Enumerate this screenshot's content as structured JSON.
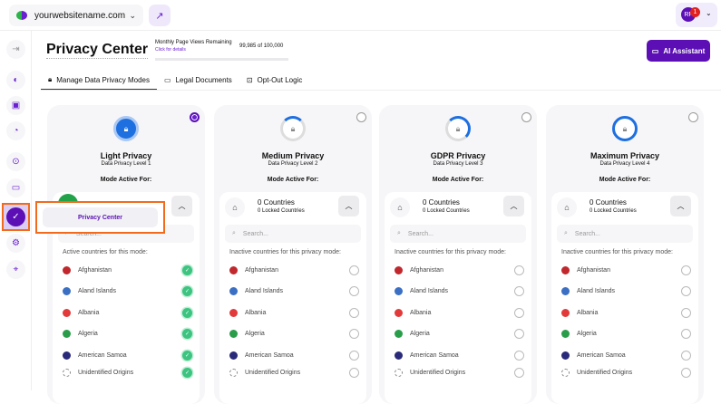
{
  "topbar": {
    "site": "yourwebsitename.com",
    "user_initials": "RF",
    "notifications": "1"
  },
  "sidebar": {
    "items": [
      "collapse",
      "dashboard",
      "consent",
      "analytics",
      "scan",
      "chat",
      "privacy-center",
      "settings",
      "users"
    ],
    "active": "privacy-center",
    "tooltip": "Privacy Center"
  },
  "header": {
    "title": "Privacy Center",
    "pageviews_label": "Monthly Page Views Remaining",
    "pageviews_link": "Click for details",
    "pageviews_count": "99,985 of 100,000",
    "pageviews_used_fraction": 0.00015,
    "ai_button": "AI Assistant"
  },
  "tabs": [
    {
      "label": "Manage Data Privacy Modes",
      "active": true
    },
    {
      "label": "Legal Documents"
    },
    {
      "label": "Opt-Out Logic"
    }
  ],
  "colors": {
    "accent": "#5b0fb5",
    "highlight": "#f26b1d",
    "check": "#3cc480",
    "ring": "#1e6fe0"
  },
  "mode_active_for": "Mode Active For:",
  "search_placeholder": "Search...",
  "cards": [
    {
      "name": "Light Privacy",
      "level": "Data Privacy Level 1",
      "selected": true,
      "countries": "",
      "locked": "",
      "list_header": "Active countries for this mode:",
      "checked": true
    },
    {
      "name": "Medium Privacy",
      "level": "Data Privacy Level 2",
      "selected": false,
      "countries": "0 Countries",
      "locked": "0 Locked Countries",
      "list_header": "Inactive countries for this privacy mode:",
      "checked": false
    },
    {
      "name": "GDPR Privacy",
      "level": "Data Privacy Level 3",
      "selected": false,
      "countries": "0 Countries",
      "locked": "0 Locked Countries",
      "list_header": "Inactive countries for this privacy mode:",
      "checked": false
    },
    {
      "name": "Maximum Privacy",
      "level": "Data Privacy Level 4",
      "selected": false,
      "countries": "0 Countries",
      "locked": "0 Locked Countries",
      "list_header": "Inactive countries for this privacy mode:",
      "checked": false
    }
  ],
  "countries": [
    {
      "name": "Afghanistan",
      "flag": "#c0282d"
    },
    {
      "name": "Aland Islands",
      "flag": "#3a6fc4"
    },
    {
      "name": "Albania",
      "flag": "#e23a3a"
    },
    {
      "name": "Algeria",
      "flag": "#2a9d4a"
    },
    {
      "name": "American Samoa",
      "flag": "#2a2a7a"
    },
    {
      "name": "Unidentified Origins",
      "flag": "none"
    }
  ]
}
